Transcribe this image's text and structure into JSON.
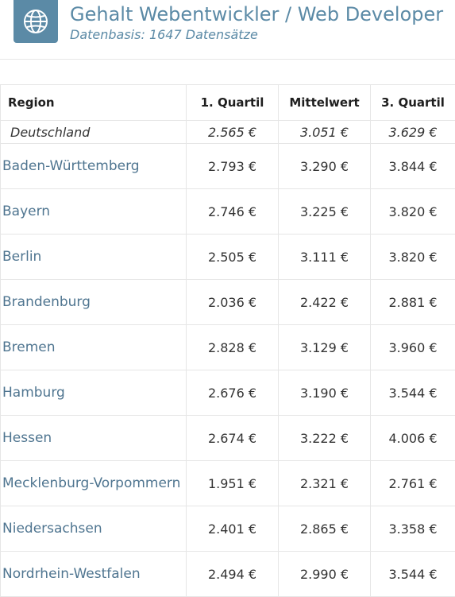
{
  "header": {
    "title": "Gehalt Webentwickler / Web Developer",
    "subtitle": "Datenbasis: 1647 Datensätze",
    "icon": "globe-icon",
    "accent_color": "#5b8aa6"
  },
  "table": {
    "columns": [
      "Region",
      "1. Quartil",
      "Mittelwert",
      "3. Quartil"
    ],
    "national": {
      "region": "Deutschland",
      "q1": "2.565 €",
      "mean": "3.051 €",
      "q3": "3.629 €"
    },
    "rows": [
      {
        "region": "Baden-Württemberg",
        "q1": "2.793 €",
        "mean": "3.290 €",
        "q3": "3.844 €"
      },
      {
        "region": "Bayern",
        "q1": "2.746 €",
        "mean": "3.225 €",
        "q3": "3.820 €"
      },
      {
        "region": "Berlin",
        "q1": "2.505 €",
        "mean": "3.111 €",
        "q3": "3.820 €"
      },
      {
        "region": "Brandenburg",
        "q1": "2.036 €",
        "mean": "2.422 €",
        "q3": "2.881 €"
      },
      {
        "region": "Bremen",
        "q1": "2.828 €",
        "mean": "3.129 €",
        "q3": "3.960 €"
      },
      {
        "region": "Hamburg",
        "q1": "2.676 €",
        "mean": "3.190 €",
        "q3": "3.544 €"
      },
      {
        "region": "Hessen",
        "q1": "2.674 €",
        "mean": "3.222 €",
        "q3": "4.006 €"
      },
      {
        "region": "Mecklenburg-Vorpommern",
        "q1": "1.951 €",
        "mean": "2.321 €",
        "q3": "2.761 €"
      },
      {
        "region": "Niedersachsen",
        "q1": "2.401 €",
        "mean": "2.865 €",
        "q3": "3.358 €"
      },
      {
        "region": "Nordrhein-Westfalen",
        "q1": "2.494 €",
        "mean": "2.990 €",
        "q3": "3.544 €"
      }
    ]
  }
}
